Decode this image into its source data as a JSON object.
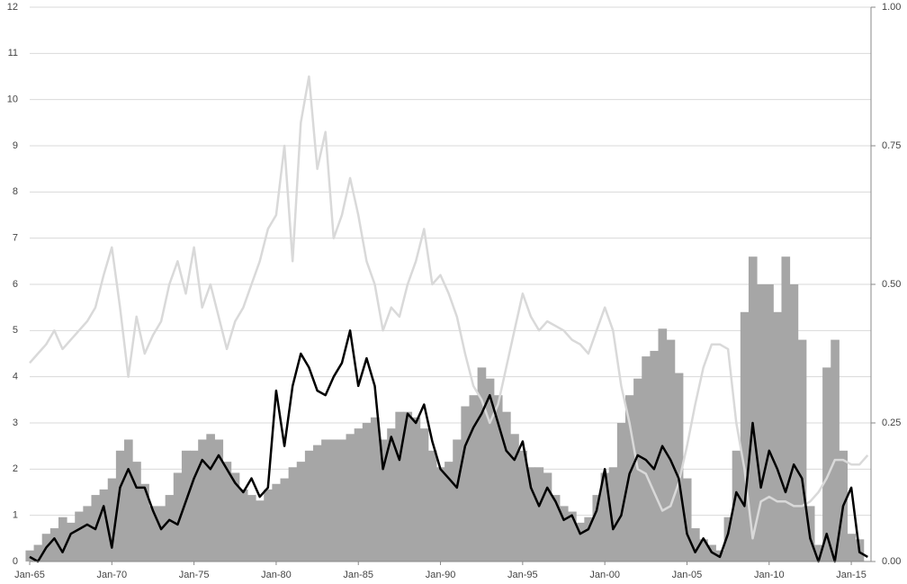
{
  "chart_data": {
    "type": "combo",
    "x": [
      1965,
      1965.5,
      1966,
      1966.5,
      1967,
      1967.5,
      1968,
      1968.5,
      1969,
      1969.5,
      1970,
      1970.5,
      1971,
      1971.5,
      1972,
      1972.5,
      1973,
      1973.5,
      1974,
      1974.5,
      1975,
      1975.5,
      1976,
      1976.5,
      1977,
      1977.5,
      1978,
      1978.5,
      1979,
      1979.5,
      1980,
      1980.5,
      1981,
      1981.5,
      1982,
      1982.5,
      1983,
      1983.5,
      1984,
      1984.5,
      1985,
      1985.5,
      1986,
      1986.5,
      1987,
      1987.5,
      1988,
      1988.5,
      1989,
      1989.5,
      1990,
      1990.5,
      1991,
      1991.5,
      1992,
      1992.5,
      1993,
      1993.5,
      1994,
      1994.5,
      1995,
      1995.5,
      1996,
      1996.5,
      1997,
      1997.5,
      1998,
      1998.5,
      1999,
      1999.5,
      2000,
      2000.5,
      2001,
      2001.5,
      2002,
      2002.5,
      2003,
      2003.5,
      2004,
      2004.5,
      2005,
      2005.5,
      2006,
      2006.5,
      2007,
      2007.5,
      2008,
      2008.5,
      2009,
      2009.5,
      2010,
      2010.5,
      2011,
      2011.5,
      2012,
      2012.5,
      2013,
      2013.5,
      2014,
      2014.5,
      2015,
      2015.5,
      2016
    ],
    "series": [
      {
        "type": "bar",
        "axis": "y2",
        "color": "#a6a6a6",
        "values": [
          0.02,
          0.03,
          0.05,
          0.06,
          0.08,
          0.07,
          0.09,
          0.1,
          0.12,
          0.13,
          0.15,
          0.2,
          0.22,
          0.18,
          0.14,
          0.1,
          0.1,
          0.12,
          0.16,
          0.2,
          0.2,
          0.22,
          0.23,
          0.22,
          0.18,
          0.16,
          0.13,
          0.12,
          0.11,
          0.13,
          0.14,
          0.15,
          0.17,
          0.18,
          0.2,
          0.21,
          0.22,
          0.22,
          0.22,
          0.23,
          0.24,
          0.25,
          0.26,
          0.22,
          0.24,
          0.27,
          0.27,
          0.26,
          0.24,
          0.2,
          0.17,
          0.18,
          0.22,
          0.28,
          0.3,
          0.35,
          0.33,
          0.3,
          0.27,
          0.23,
          0.2,
          0.17,
          0.17,
          0.16,
          0.12,
          0.1,
          0.09,
          0.07,
          0.08,
          0.12,
          0.16,
          0.17,
          0.25,
          0.3,
          0.33,
          0.37,
          0.38,
          0.42,
          0.4,
          0.34,
          0.15,
          0.06,
          0.04,
          0.03,
          0.02,
          0.08,
          0.2,
          0.45,
          0.55,
          0.5,
          0.5,
          0.45,
          0.55,
          0.5,
          0.4,
          0.1,
          0.03,
          0.35,
          0.4,
          0.2,
          0.05,
          0.04,
          0.0
        ]
      },
      {
        "type": "line",
        "color": "#d9d9d9",
        "values": [
          4.3,
          4.5,
          4.7,
          5.0,
          4.6,
          4.8,
          5.0,
          5.2,
          5.5,
          6.2,
          6.8,
          5.5,
          4.0,
          5.3,
          4.5,
          4.9,
          5.2,
          6.0,
          6.5,
          5.8,
          6.8,
          5.5,
          6.0,
          5.3,
          4.6,
          5.2,
          5.5,
          6.0,
          6.5,
          7.2,
          7.5,
          9.0,
          6.5,
          9.5,
          10.5,
          8.5,
          9.3,
          7.0,
          7.5,
          8.3,
          7.5,
          6.5,
          6.0,
          5.0,
          5.5,
          5.3,
          6.0,
          6.5,
          7.2,
          6.0,
          6.2,
          5.8,
          5.3,
          4.5,
          3.8,
          3.5,
          3.0,
          3.4,
          4.2,
          5.0,
          5.8,
          5.3,
          5.0,
          5.2,
          5.1,
          5.0,
          4.8,
          4.7,
          4.5,
          5.0,
          5.5,
          5.0,
          3.8,
          3.0,
          2.0,
          1.9,
          1.5,
          1.1,
          1.2,
          1.7,
          2.5,
          3.4,
          4.2,
          4.7,
          4.7,
          4.6,
          3.0,
          2.0,
          0.5,
          1.3,
          1.4,
          1.3,
          1.3,
          1.2,
          1.2,
          1.3,
          1.5,
          1.8,
          2.2,
          2.2,
          2.1,
          2.1,
          2.3
        ]
      },
      {
        "type": "line",
        "color": "#000000",
        "values": [
          0.1,
          0.0,
          0.3,
          0.5,
          0.2,
          0.6,
          0.7,
          0.8,
          0.7,
          1.2,
          0.3,
          1.6,
          2.0,
          1.6,
          1.6,
          1.1,
          0.7,
          0.9,
          0.8,
          1.3,
          1.8,
          2.2,
          2.0,
          2.3,
          2.0,
          1.7,
          1.5,
          1.8,
          1.4,
          1.6,
          3.7,
          2.5,
          3.8,
          4.5,
          4.2,
          3.7,
          3.6,
          4.0,
          4.3,
          5.0,
          3.8,
          4.4,
          3.8,
          2.0,
          2.7,
          2.2,
          3.2,
          3.0,
          3.4,
          2.6,
          2.0,
          1.8,
          1.6,
          2.5,
          2.9,
          3.2,
          3.6,
          3.0,
          2.4,
          2.2,
          2.6,
          1.6,
          1.2,
          1.6,
          1.3,
          0.9,
          1.0,
          0.6,
          0.7,
          1.1,
          2.0,
          0.7,
          1.0,
          1.9,
          2.3,
          2.2,
          2.0,
          2.5,
          2.2,
          1.8,
          0.6,
          0.2,
          0.5,
          0.2,
          0.1,
          0.6,
          1.5,
          1.2,
          3.0,
          1.6,
          2.4,
          2.0,
          1.5,
          2.1,
          1.8,
          0.5,
          0.0,
          0.6,
          0.0,
          1.2,
          1.6,
          0.2,
          0.1
        ]
      }
    ],
    "xlim": [
      1965,
      2016.2
    ],
    "xticks": [
      {
        "value": 1965,
        "label": "Jan-65"
      },
      {
        "value": 1970,
        "label": "Jan-70"
      },
      {
        "value": 1975,
        "label": "Jan-75"
      },
      {
        "value": 1980,
        "label": "Jan-80"
      },
      {
        "value": 1985,
        "label": "Jan-85"
      },
      {
        "value": 1990,
        "label": "Jan-90"
      },
      {
        "value": 1995,
        "label": "Jan-95"
      },
      {
        "value": 2000,
        "label": "Jan-00"
      },
      {
        "value": 2005,
        "label": "Jan-05"
      },
      {
        "value": 2010,
        "label": "Jan-10"
      },
      {
        "value": 2015,
        "label": "Jan-15"
      }
    ],
    "ylim": [
      0,
      12
    ],
    "yticks": [
      0,
      1,
      2,
      3,
      4,
      5,
      6,
      7,
      8,
      9,
      10,
      11,
      12
    ],
    "y2lim": [
      0,
      1
    ],
    "y2ticks": [
      {
        "value": 0,
        "label": "0.00"
      },
      {
        "value": 0.25,
        "label": "0.25"
      },
      {
        "value": 0.5,
        "label": "0.50"
      },
      {
        "value": 0.75,
        "label": "0.75"
      },
      {
        "value": 1,
        "label": "1.00"
      }
    ],
    "grid": true
  }
}
